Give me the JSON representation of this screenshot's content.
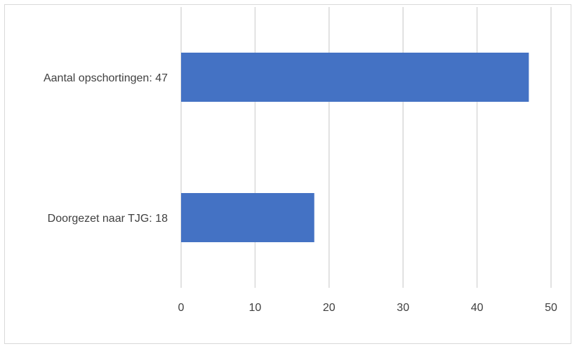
{
  "chart_data": {
    "type": "bar",
    "orientation": "horizontal",
    "categories": [
      "Aantal opschortingen: 47",
      "Doorgezet naar TJG: 18"
    ],
    "values": [
      47,
      18
    ],
    "xlim": [
      0,
      50
    ],
    "x_ticks": [
      0,
      10,
      20,
      30,
      40,
      50
    ],
    "grid": true,
    "legend": "none",
    "bar_color": "#4472C4",
    "grid_color": "#d9d9d9"
  }
}
